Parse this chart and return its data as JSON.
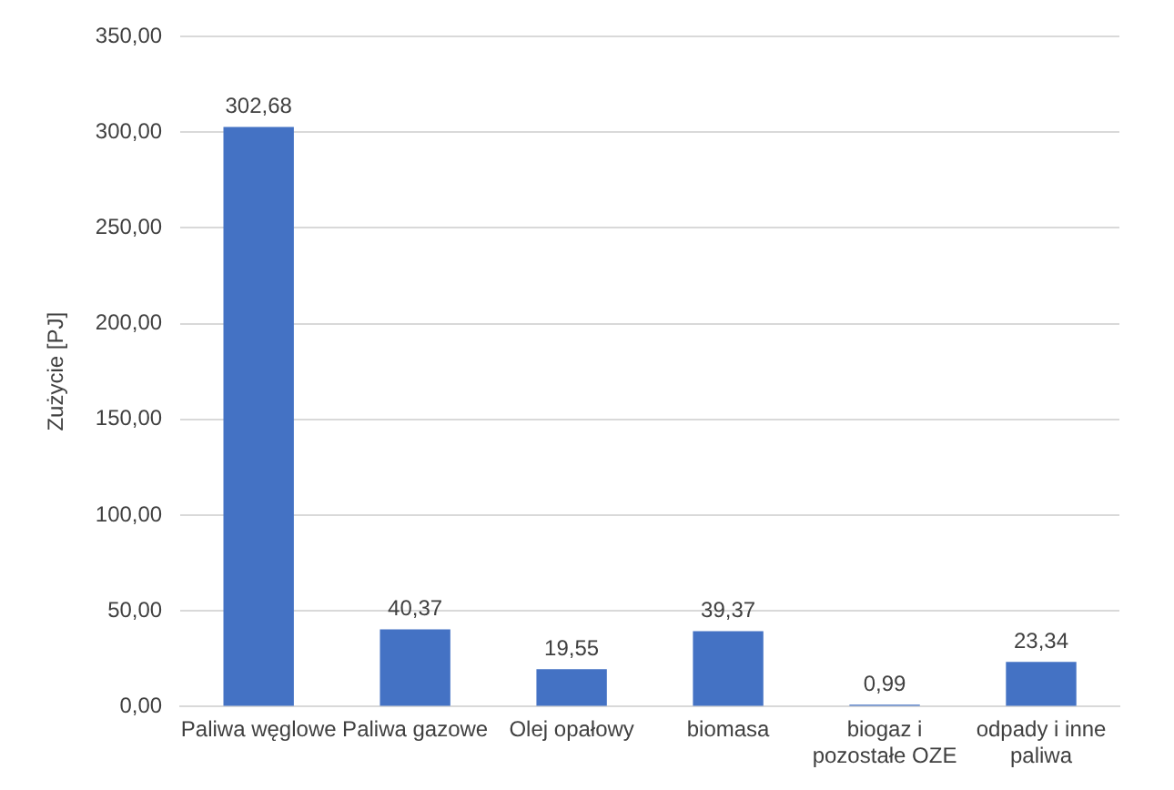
{
  "chart_data": {
    "type": "bar",
    "ylabel": "Zużycie [PJ]",
    "categories": [
      "Paliwa węglowe",
      "Paliwa gazowe",
      "Olej opałowy",
      "biomasa",
      "biogaz i pozostałe OZE",
      "odpady i inne paliwa"
    ],
    "values": [
      302.68,
      40.37,
      19.55,
      39.37,
      0.99,
      23.34
    ],
    "value_labels": [
      "302,68",
      "40,37",
      "19,55",
      "39,37",
      "0,99",
      "23,34"
    ],
    "color": "#4472c4",
    "ylim": [
      0,
      350
    ],
    "yticks": [
      {
        "value": 0,
        "label": "0,00"
      },
      {
        "value": 50,
        "label": "50,00"
      },
      {
        "value": 100,
        "label": "100,00"
      },
      {
        "value": 150,
        "label": "150,00"
      },
      {
        "value": 200,
        "label": "200,00"
      },
      {
        "value": 250,
        "label": "250,00"
      },
      {
        "value": 300,
        "label": "300,00"
      },
      {
        "value": 350,
        "label": "350,00"
      }
    ],
    "grid": "y",
    "legend": false
  }
}
